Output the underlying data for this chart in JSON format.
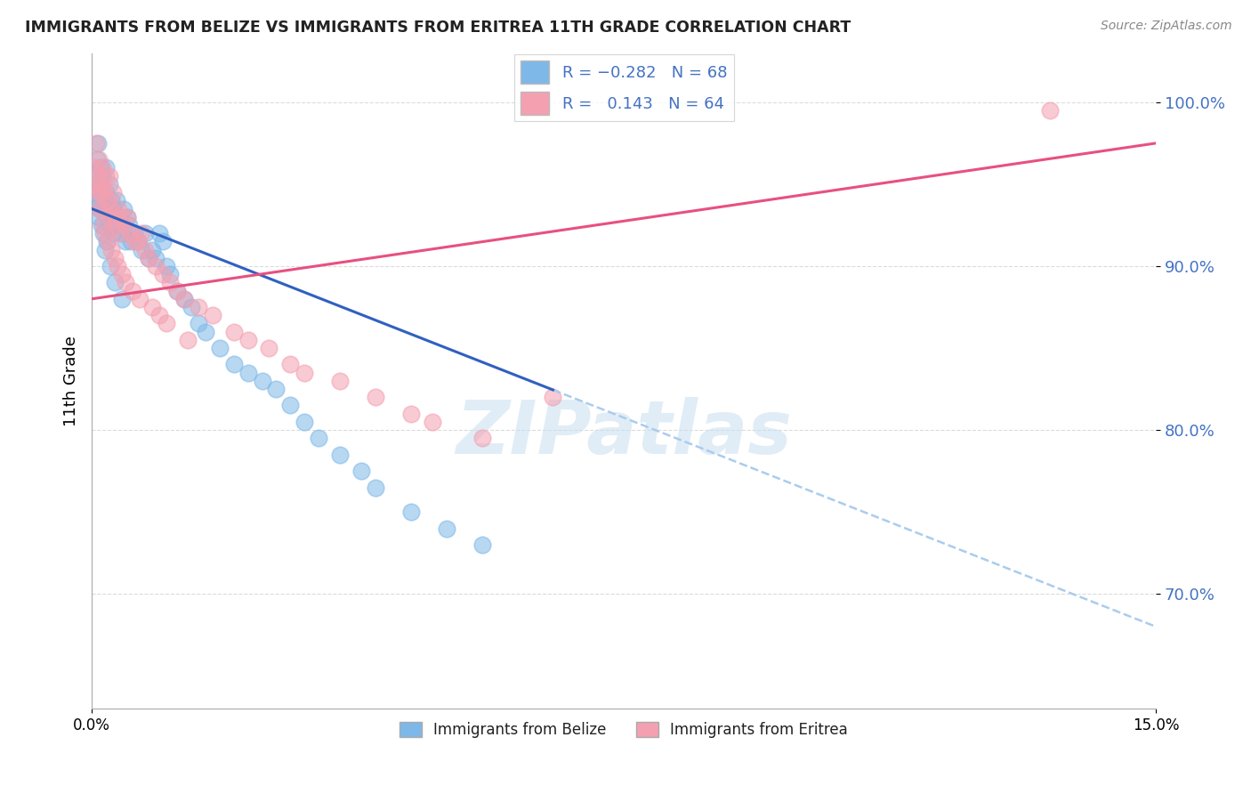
{
  "title": "IMMIGRANTS FROM BELIZE VS IMMIGRANTS FROM ERITREA 11TH GRADE CORRELATION CHART",
  "source": "Source: ZipAtlas.com",
  "ylabel": "11th Grade",
  "y_ticks": [
    70.0,
    80.0,
    90.0,
    100.0
  ],
  "y_tick_labels": [
    "70.0%",
    "80.0%",
    "90.0%",
    "100.0%"
  ],
  "xmin": 0.0,
  "xmax": 15.0,
  "ymin": 63.0,
  "ymax": 103.0,
  "r_belize": -0.282,
  "n_belize": 68,
  "r_eritrea": 0.143,
  "n_eritrea": 64,
  "color_belize": "#7EB8E8",
  "color_eritrea": "#F4A0B0",
  "line_color_belize": "#3060C0",
  "line_color_eritrea": "#E85080",
  "dashed_color": "#AACCEE",
  "legend_label_belize": "Immigrants from Belize",
  "legend_label_eritrea": "Immigrants from Eritrea",
  "watermark": "ZIPatlas",
  "belize_trend_x0": 0.0,
  "belize_trend_y0": 93.5,
  "belize_trend_x1": 15.0,
  "belize_trend_y1": 68.0,
  "belize_solid_end": 6.5,
  "eritrea_trend_x0": 0.0,
  "eritrea_trend_y0": 88.0,
  "eritrea_trend_x1": 15.0,
  "eritrea_trend_y1": 97.5,
  "belize_x": [
    0.05,
    0.07,
    0.08,
    0.1,
    0.1,
    0.12,
    0.13,
    0.15,
    0.15,
    0.18,
    0.2,
    0.2,
    0.22,
    0.25,
    0.25,
    0.28,
    0.3,
    0.3,
    0.32,
    0.35,
    0.38,
    0.4,
    0.42,
    0.45,
    0.48,
    0.5,
    0.52,
    0.55,
    0.6,
    0.65,
    0.7,
    0.75,
    0.8,
    0.85,
    0.9,
    0.95,
    1.0,
    1.05,
    1.1,
    1.2,
    1.3,
    1.4,
    1.5,
    1.6,
    1.8,
    2.0,
    2.2,
    2.4,
    2.6,
    2.8,
    3.0,
    3.2,
    3.5,
    3.8,
    4.0,
    4.5,
    5.0,
    5.5,
    0.06,
    0.09,
    0.11,
    0.14,
    0.16,
    0.19,
    0.21,
    0.26,
    0.33,
    0.43
  ],
  "belize_y": [
    94.5,
    96.5,
    97.5,
    95.0,
    93.0,
    96.0,
    94.0,
    95.5,
    93.5,
    94.0,
    96.0,
    94.5,
    93.0,
    95.0,
    92.5,
    94.0,
    93.5,
    92.0,
    93.0,
    94.0,
    92.5,
    93.0,
    92.0,
    93.5,
    91.5,
    93.0,
    92.5,
    91.5,
    92.0,
    91.5,
    91.0,
    92.0,
    90.5,
    91.0,
    90.5,
    92.0,
    91.5,
    90.0,
    89.5,
    88.5,
    88.0,
    87.5,
    86.5,
    86.0,
    85.0,
    84.0,
    83.5,
    83.0,
    82.5,
    81.5,
    80.5,
    79.5,
    78.5,
    77.5,
    76.5,
    75.0,
    74.0,
    73.0,
    95.5,
    94.0,
    93.5,
    92.5,
    92.0,
    91.0,
    91.5,
    90.0,
    89.0,
    88.0
  ],
  "eritrea_x": [
    0.04,
    0.06,
    0.08,
    0.1,
    0.12,
    0.14,
    0.15,
    0.15,
    0.18,
    0.2,
    0.22,
    0.25,
    0.25,
    0.28,
    0.3,
    0.32,
    0.35,
    0.38,
    0.4,
    0.42,
    0.45,
    0.5,
    0.55,
    0.6,
    0.65,
    0.7,
    0.75,
    0.8,
    0.9,
    1.0,
    1.1,
    1.2,
    1.3,
    1.5,
    1.7,
    2.0,
    2.2,
    2.5,
    2.8,
    3.0,
    3.5,
    4.0,
    4.5,
    4.8,
    5.5,
    6.5,
    13.5,
    0.07,
    0.09,
    0.11,
    0.16,
    0.19,
    0.23,
    0.27,
    0.33,
    0.36,
    0.43,
    0.48,
    0.58,
    0.68,
    0.85,
    0.95,
    1.05,
    1.35
  ],
  "eritrea_y": [
    96.0,
    97.5,
    95.5,
    96.5,
    94.5,
    95.0,
    96.0,
    93.5,
    94.5,
    95.5,
    94.0,
    95.5,
    93.0,
    93.5,
    94.5,
    92.5,
    93.0,
    93.5,
    92.0,
    93.0,
    92.5,
    93.0,
    92.0,
    91.5,
    91.5,
    92.0,
    91.0,
    90.5,
    90.0,
    89.5,
    89.0,
    88.5,
    88.0,
    87.5,
    87.0,
    86.0,
    85.5,
    85.0,
    84.0,
    83.5,
    83.0,
    82.0,
    81.0,
    80.5,
    79.5,
    82.0,
    99.5,
    95.0,
    94.5,
    93.5,
    92.5,
    92.0,
    91.5,
    91.0,
    90.5,
    90.0,
    89.5,
    89.0,
    88.5,
    88.0,
    87.5,
    87.0,
    86.5,
    85.5
  ]
}
